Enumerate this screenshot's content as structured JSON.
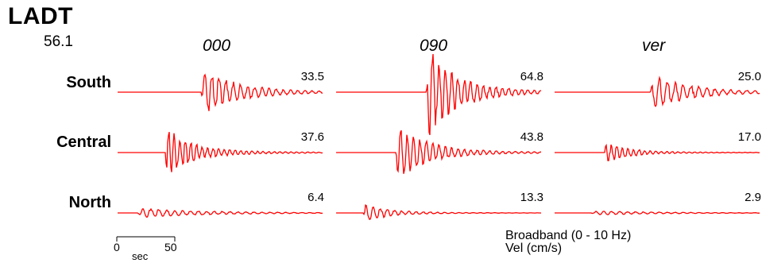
{
  "station": {
    "code": "LADT",
    "distance": "56.1"
  },
  "colors": {
    "trace": "#ff0000",
    "text": "#000000",
    "background": "#ffffff"
  },
  "chart_data": {
    "type": "line",
    "title": "LADT",
    "subtitle": "56.1",
    "components": [
      "000",
      "090",
      "ver"
    ],
    "rows": [
      "South",
      "Central",
      "North"
    ],
    "peak_values": [
      [
        33.5,
        64.8,
        25.0
      ],
      [
        37.6,
        43.8,
        17.0
      ],
      [
        6.4,
        13.3,
        2.9
      ]
    ],
    "peak_labels": [
      [
        "33.5",
        "64.8",
        "25.0"
      ],
      [
        "37.6",
        "43.8",
        "17.0"
      ],
      [
        "6.4",
        "13.3",
        "2.9"
      ]
    ],
    "time_scale": {
      "tick_labels": [
        "0",
        "50"
      ],
      "unit": "sec"
    },
    "legend": {
      "line1": "Broadband (0 - 10 Hz)",
      "line2": "Vel (cm/s)"
    },
    "grid": false
  }
}
